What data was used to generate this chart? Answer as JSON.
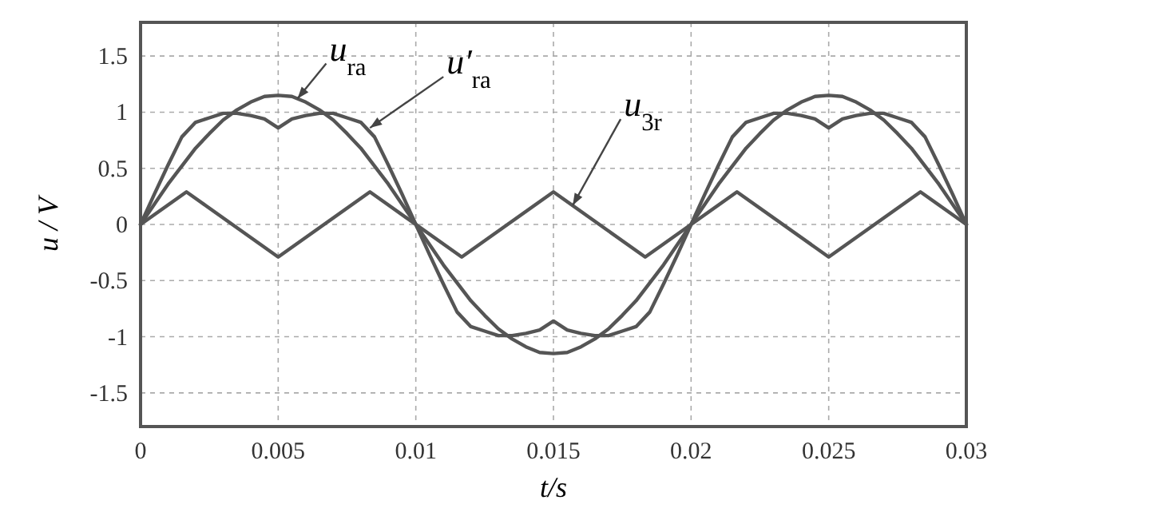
{
  "chart_data": {
    "type": "line",
    "xlabel": "t/s",
    "ylabel": "u / V",
    "x": [
      0,
      0.0005,
      0.001,
      0.0015,
      0.002,
      0.0025,
      0.003,
      0.0035,
      0.004,
      0.0045,
      0.005,
      0.0055,
      0.006,
      0.0065,
      0.007,
      0.0075,
      0.008,
      0.0085,
      0.009,
      0.0095,
      0.01,
      0.0105,
      0.011,
      0.0115,
      0.012,
      0.0125,
      0.013,
      0.0135,
      0.014,
      0.0145,
      0.015,
      0.0155,
      0.016,
      0.0165,
      0.017,
      0.0175,
      0.018,
      0.0185,
      0.019,
      0.0195,
      0.02,
      0.0205,
      0.021,
      0.0215,
      0.022,
      0.0225,
      0.023,
      0.0235,
      0.024,
      0.0245,
      0.025,
      0.0255,
      0.026,
      0.0265,
      0.027,
      0.0275,
      0.028,
      0.0285,
      0.029,
      0.0295,
      0.03
    ],
    "series": [
      {
        "color": "#555555",
        "values": [
          0,
          0.18,
          0.36,
          0.52,
          0.68,
          0.81,
          0.93,
          1.02,
          1.09,
          1.14,
          1.15,
          1.14,
          1.09,
          1.02,
          0.93,
          0.81,
          0.68,
          0.52,
          0.36,
          0.18,
          0,
          -0.18,
          -0.36,
          -0.52,
          -0.68,
          -0.81,
          -0.93,
          -1.02,
          -1.09,
          -1.14,
          -1.15,
          -1.14,
          -1.09,
          -1.02,
          -0.93,
          -0.81,
          -0.68,
          -0.52,
          -0.36,
          -0.18,
          0,
          0.18,
          0.36,
          0.52,
          0.68,
          0.81,
          0.93,
          1.02,
          1.09,
          1.14,
          1.15,
          1.14,
          1.09,
          1.02,
          0.93,
          0.81,
          0.68,
          0.52,
          0.36,
          0.18,
          0
        ]
      },
      {
        "color": "#555555",
        "values": [
          0,
          0.27,
          0.53,
          0.78,
          0.91,
          0.95,
          0.99,
          0.99,
          0.97,
          0.94,
          0.86,
          0.94,
          0.97,
          0.99,
          0.99,
          0.95,
          0.91,
          0.78,
          0.53,
          0.27,
          0,
          -0.27,
          -0.53,
          -0.78,
          -0.91,
          -0.95,
          -0.99,
          -0.99,
          -0.97,
          -0.94,
          -0.86,
          -0.94,
          -0.97,
          -0.99,
          -0.99,
          -0.95,
          -0.91,
          -0.78,
          -0.53,
          -0.27,
          0,
          0.27,
          0.53,
          0.78,
          0.91,
          0.95,
          0.99,
          0.99,
          0.97,
          0.94,
          0.86,
          0.94,
          0.97,
          0.99,
          0.99,
          0.95,
          0.91,
          0.78,
          0.53,
          0.27,
          0
        ]
      },
      {
        "color": "#555555",
        "x": [
          0,
          0.001667,
          0.005,
          0.008333,
          0.011667,
          0.015,
          0.018333,
          0.021667,
          0.025,
          0.028333,
          0.03
        ],
        "values": [
          0,
          0.29,
          -0.29,
          0.29,
          -0.29,
          0.29,
          -0.29,
          0.29,
          -0.29,
          0.29,
          0
        ]
      }
    ],
    "annotations": [
      {
        "text": "u$_{ra}$",
        "x": 0.0057,
        "y": 1.12
      },
      {
        "text": "u′$_{ra}$",
        "x": 0.008333,
        "y": 0.86
      },
      {
        "text": "u$_{3r}$",
        "x": 0.0157,
        "y": 0.17
      }
    ],
    "xlim": [
      0,
      0.03
    ],
    "xticks": [
      0,
      0.005,
      0.01,
      0.015,
      0.02,
      0.025,
      0.03
    ],
    "ylim": [
      -1.8,
      1.8
    ],
    "yticks": [
      -1.5,
      -1,
      -0.5,
      0,
      0.5,
      1,
      1.5
    ],
    "grid": true,
    "marker": "none",
    "line_style": "solid"
  }
}
